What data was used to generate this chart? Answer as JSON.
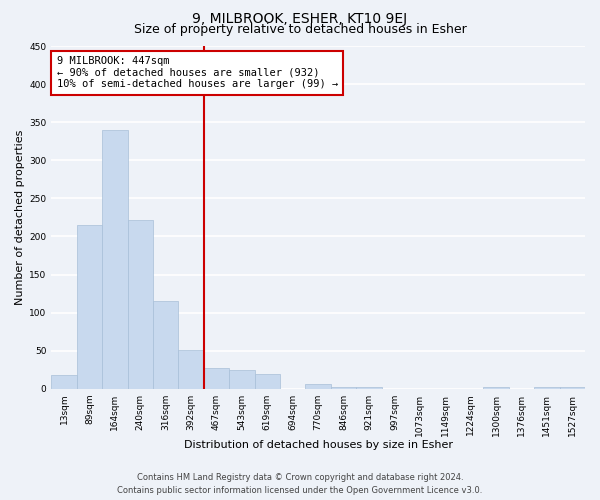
{
  "title": "9, MILBROOK, ESHER, KT10 9EJ",
  "subtitle": "Size of property relative to detached houses in Esher",
  "xlabel": "Distribution of detached houses by size in Esher",
  "ylabel": "Number of detached properties",
  "bar_labels": [
    "13sqm",
    "89sqm",
    "164sqm",
    "240sqm",
    "316sqm",
    "392sqm",
    "467sqm",
    "543sqm",
    "619sqm",
    "694sqm",
    "770sqm",
    "846sqm",
    "921sqm",
    "997sqm",
    "1073sqm",
    "1149sqm",
    "1224sqm",
    "1300sqm",
    "1376sqm",
    "1451sqm",
    "1527sqm"
  ],
  "bar_values": [
    18,
    215,
    340,
    222,
    115,
    51,
    27,
    25,
    20,
    0,
    6,
    2,
    2,
    0,
    0,
    0,
    0,
    2,
    0,
    2,
    2
  ],
  "bar_color": "#c8d9ee",
  "bar_edge_color": "#a8bfd8",
  "vline_x_index": 6,
  "vline_color": "#cc0000",
  "annotation_title": "9 MILBROOK: 447sqm",
  "annotation_line2": "← 90% of detached houses are smaller (932)",
  "annotation_line3": "10% of semi-detached houses are larger (99) →",
  "ylim": [
    0,
    450
  ],
  "yticks": [
    0,
    50,
    100,
    150,
    200,
    250,
    300,
    350,
    400,
    450
  ],
  "footer_line1": "Contains HM Land Registry data © Crown copyright and database right 2024.",
  "footer_line2": "Contains public sector information licensed under the Open Government Licence v3.0.",
  "bg_color": "#eef2f8",
  "plot_bg_color": "#eef2f8",
  "grid_color": "#ffffff",
  "title_fontsize": 10,
  "subtitle_fontsize": 9,
  "axis_label_fontsize": 8,
  "tick_fontsize": 6.5,
  "annotation_fontsize": 7.5,
  "footer_fontsize": 6
}
